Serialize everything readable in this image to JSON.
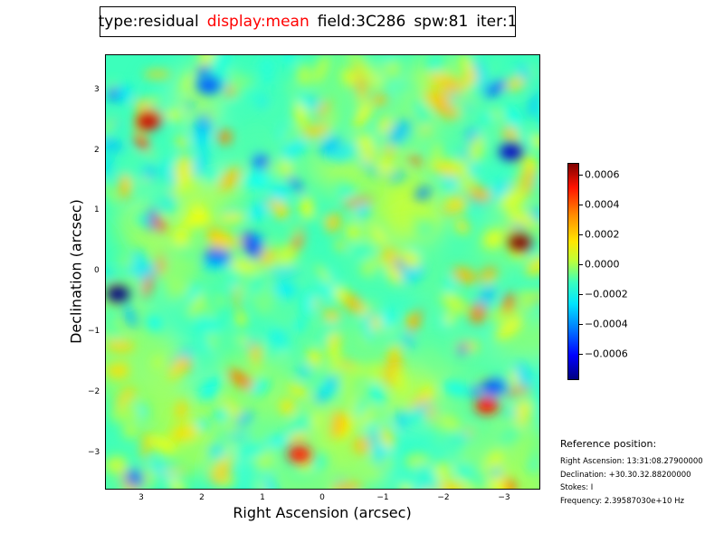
{
  "title": {
    "type": "type:residual",
    "display": "display:mean",
    "field": "field:3C286",
    "spw": "spw:81",
    "iter": "iter:1"
  },
  "colors": {
    "title_highlight": "#ff0000",
    "colormap": "jet"
  },
  "chart_data": {
    "type": "heatmap",
    "xlabel": "Right Ascension (arcsec)",
    "ylabel": "Declination (arcsec)",
    "xlim": [
      3.6,
      -3.6
    ],
    "ylim": [
      -3.6,
      3.6
    ],
    "x_ticks": [
      "3",
      "2",
      "1",
      "0",
      "−1",
      "−2",
      "−3"
    ],
    "y_ticks": [
      "3",
      "2",
      "1",
      "0",
      "−1",
      "−2",
      "−3"
    ],
    "colorbar": {
      "min": -0.0007,
      "max": 0.0007,
      "ticks": [
        "0.0006",
        "0.0004",
        "0.0002",
        "0.0000",
        "−0.0002",
        "−0.0004",
        "−0.0006"
      ]
    },
    "notable_features": [
      {
        "kind": "max",
        "x": -3.25,
        "y": 0.5,
        "value": 0.0007
      },
      {
        "kind": "max",
        "x": 2.9,
        "y": 2.5,
        "value": 0.0006
      },
      {
        "kind": "max",
        "x": 0.4,
        "y": -3.0,
        "value": 0.0005
      },
      {
        "kind": "max",
        "x": -2.7,
        "y": -2.2,
        "value": 0.0005
      },
      {
        "kind": "min",
        "x": 3.4,
        "y": -0.35,
        "value": -0.0007
      },
      {
        "kind": "min",
        "x": -3.1,
        "y": 2.0,
        "value": -0.0006
      },
      {
        "kind": "min",
        "x": 1.9,
        "y": 3.1,
        "value": -0.0004
      },
      {
        "kind": "min",
        "x": -2.8,
        "y": -1.9,
        "value": -0.0004
      }
    ]
  },
  "reference": {
    "title": "Reference position:",
    "lines": [
      "Right Ascension: 13:31:08.27900000",
      "Declination: +30.30.32.88200000",
      "Stokes: I",
      "Frequency: 2.39587030e+10 Hz"
    ]
  }
}
